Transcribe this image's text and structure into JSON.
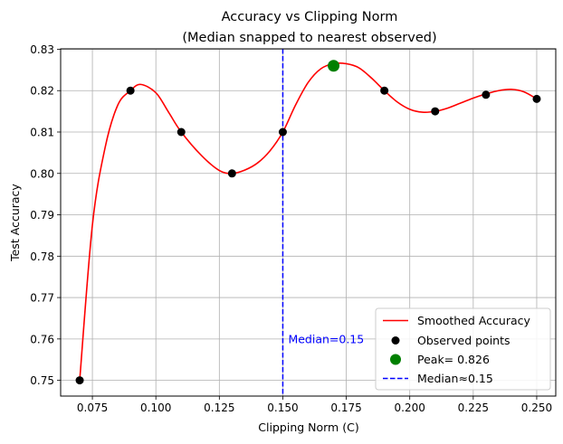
{
  "chart_data": {
    "type": "line",
    "title_line1": "Accuracy vs Clipping Norm",
    "title_line2": "(Median snapped to nearest observed)",
    "xlabel": "Clipping Norm (C)",
    "ylabel": "Test Accuracy",
    "xlim": [
      0.0625,
      0.2575
    ],
    "ylim": [
      0.7462,
      0.8301
    ],
    "grid": true,
    "x_ticks": [
      0.075,
      0.1,
      0.125,
      0.15,
      0.175,
      0.2,
      0.225,
      0.25
    ],
    "x_tick_labels": [
      "0.075",
      "0.100",
      "0.125",
      "0.150",
      "0.175",
      "0.200",
      "0.225",
      "0.250"
    ],
    "y_ticks": [
      0.75,
      0.76,
      0.77,
      0.78,
      0.79,
      0.8,
      0.81,
      0.82,
      0.83
    ],
    "y_tick_labels": [
      "0.75",
      "0.76",
      "0.77",
      "0.78",
      "0.79",
      "0.80",
      "0.81",
      "0.82",
      "0.83"
    ],
    "observed_points": {
      "name": "Observed points",
      "color": "#000000",
      "x": [
        0.07,
        0.09,
        0.11,
        0.13,
        0.15,
        0.17,
        0.19,
        0.21,
        0.23,
        0.25
      ],
      "y": [
        0.75,
        0.82,
        0.81,
        0.8,
        0.81,
        0.826,
        0.82,
        0.815,
        0.819,
        0.818
      ]
    },
    "smoothed": {
      "name": "Smoothed Accuracy",
      "color": "#ff0000",
      "x": [
        0.07,
        0.075,
        0.08,
        0.085,
        0.09,
        0.094,
        0.1,
        0.105,
        0.11,
        0.118,
        0.125,
        0.13,
        0.135,
        0.14,
        0.145,
        0.15,
        0.155,
        0.16,
        0.165,
        0.17,
        0.175,
        0.18,
        0.185,
        0.19,
        0.195,
        0.2,
        0.205,
        0.21,
        0.215,
        0.22,
        0.225,
        0.23,
        0.235,
        0.24,
        0.245,
        0.25
      ],
      "y": [
        0.75,
        0.7875,
        0.8062,
        0.8165,
        0.82,
        0.8215,
        0.8195,
        0.8148,
        0.81,
        0.8043,
        0.8007,
        0.8,
        0.8008,
        0.8025,
        0.8055,
        0.81,
        0.8165,
        0.822,
        0.8253,
        0.8265,
        0.8265,
        0.8255,
        0.823,
        0.82,
        0.8173,
        0.8155,
        0.8148,
        0.815,
        0.8158,
        0.817,
        0.8182,
        0.8192,
        0.82,
        0.8203,
        0.8197,
        0.818
      ]
    },
    "peak": {
      "label": "Peak= 0.826",
      "x": 0.17,
      "y": 0.826,
      "color": "#008000"
    },
    "median": {
      "label": "Median≈0.15",
      "annotation": "Median=0.15",
      "x": 0.15,
      "ann_y": 0.76,
      "color": "#0000ff"
    },
    "legend": {
      "placement": "lower-right"
    }
  }
}
